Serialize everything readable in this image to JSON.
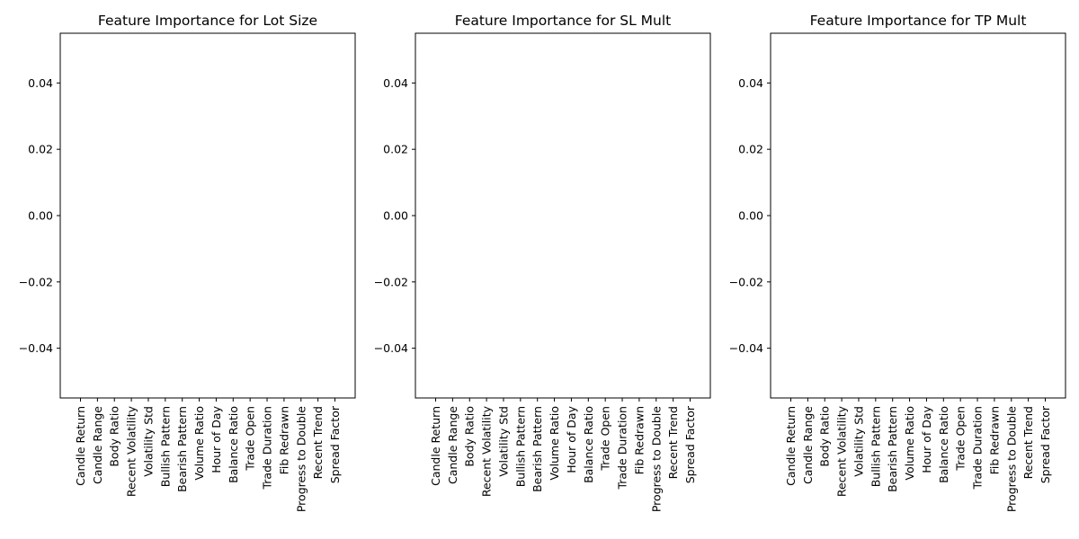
{
  "chart_data": [
    {
      "type": "bar",
      "title": "Feature Importance for Lot Size",
      "categories": [
        "Candle Return",
        "Candle Range",
        "Body Ratio",
        "Recent Volatility",
        "Volatility Std",
        "Bullish Pattern",
        "Bearish Pattern",
        "Volume Ratio",
        "Hour of Day",
        "Balance Ratio",
        "Trade Open",
        "Trade Duration",
        "Fib Redrawn",
        "Progress to Double",
        "Recent Trend",
        "Spread Factor"
      ],
      "values": [
        0,
        0,
        0,
        0,
        0,
        0,
        0,
        0,
        0,
        0,
        0,
        0,
        0,
        0,
        0,
        0
      ],
      "yticks": [
        "0.04",
        "0.02",
        "0.00",
        "−0.02",
        "−0.04"
      ],
      "ylim": [
        -0.055,
        0.055
      ],
      "xlabel": "",
      "ylabel": "",
      "grid": false
    },
    {
      "type": "bar",
      "title": "Feature Importance for SL Mult",
      "categories": [
        "Candle Return",
        "Candle Range",
        "Body Ratio",
        "Recent Volatility",
        "Volatility Std",
        "Bullish Pattern",
        "Bearish Pattern",
        "Volume Ratio",
        "Hour of Day",
        "Balance Ratio",
        "Trade Open",
        "Trade Duration",
        "Fib Redrawn",
        "Progress to Double",
        "Recent Trend",
        "Spread Factor"
      ],
      "values": [
        0,
        0,
        0,
        0,
        0,
        0,
        0,
        0,
        0,
        0,
        0,
        0,
        0,
        0,
        0,
        0
      ],
      "yticks": [
        "0.04",
        "0.02",
        "0.00",
        "−0.02",
        "−0.04"
      ],
      "ylim": [
        -0.055,
        0.055
      ],
      "xlabel": "",
      "ylabel": "",
      "grid": false
    },
    {
      "type": "bar",
      "title": "Feature Importance for TP Mult",
      "categories": [
        "Candle Return",
        "Candle Range",
        "Body Ratio",
        "Recent Volatility",
        "Volatility Std",
        "Bullish Pattern",
        "Bearish Pattern",
        "Volume Ratio",
        "Hour of Day",
        "Balance Ratio",
        "Trade Open",
        "Trade Duration",
        "Fib Redrawn",
        "Progress to Double",
        "Recent Trend",
        "Spread Factor"
      ],
      "values": [
        0,
        0,
        0,
        0,
        0,
        0,
        0,
        0,
        0,
        0,
        0,
        0,
        0,
        0,
        0,
        0
      ],
      "yticks": [
        "0.04",
        "0.02",
        "0.00",
        "−0.02",
        "−0.04"
      ],
      "ylim": [
        -0.055,
        0.055
      ],
      "xlabel": "",
      "ylabel": "",
      "grid": false
    }
  ],
  "colors": {
    "axis": "#000000",
    "bar": "#1f77b4",
    "background": "#ffffff"
  }
}
